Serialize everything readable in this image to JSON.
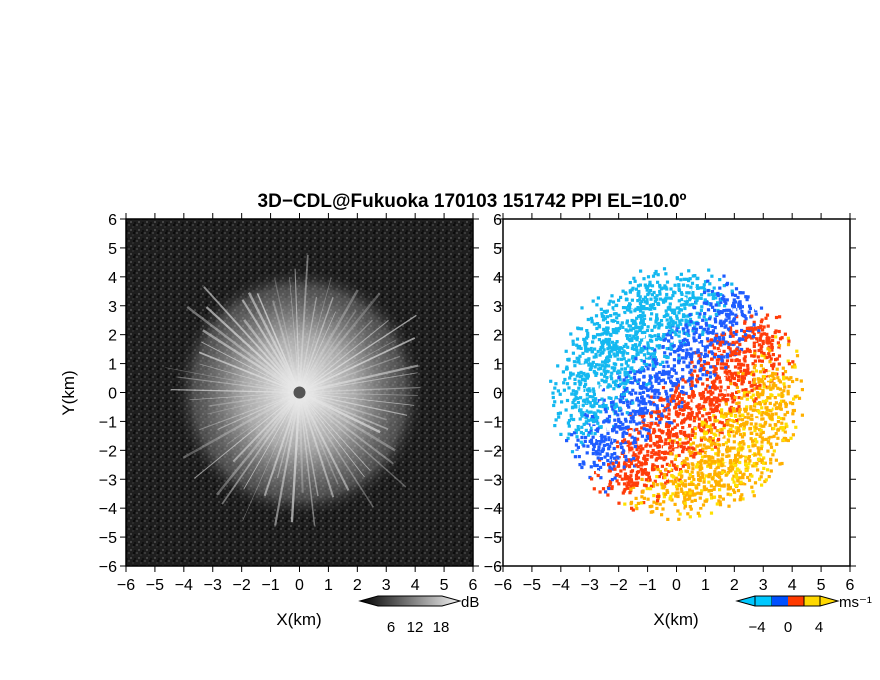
{
  "chart_data": {
    "type": "heatmap",
    "title": "3D−CDL@Fukuoka 170103 151742 PPI EL=10.0º",
    "panels": [
      {
        "name": "reflectivity",
        "xlabel": "X(km)",
        "ylabel": "Y(km)",
        "xlim": [
          -6,
          6
        ],
        "ylim": [
          -6,
          6
        ],
        "x_ticks": [
          "−6",
          "−5",
          "−4",
          "−3",
          "−2",
          "−1",
          "0",
          "1",
          "2",
          "3",
          "4",
          "5",
          "6"
        ],
        "y_ticks": [
          "6",
          "5",
          "4",
          "3",
          "2",
          "1",
          "0",
          "−1",
          "−2",
          "−3",
          "−4",
          "−5",
          "−6"
        ],
        "echo_radius_km": 4.3,
        "colorbar": {
          "unit": "dB",
          "ticks": [
            "6",
            "12",
            "18"
          ],
          "colors": [
            "#000000",
            "#555555",
            "#aaaaaa",
            "#f0f0f0"
          ]
        }
      },
      {
        "name": "doppler-velocity",
        "xlabel": "X(km)",
        "xlim": [
          -6,
          6
        ],
        "ylim": [
          -6,
          6
        ],
        "x_ticks": [
          "−6",
          "−5",
          "−4",
          "−3",
          "−2",
          "−1",
          "0",
          "1",
          "2",
          "3",
          "4",
          "5",
          "6"
        ],
        "y_ticks": [
          "6",
          "5",
          "4",
          "3",
          "2",
          "1",
          "0",
          "−1",
          "−2",
          "−3",
          "−4",
          "−5",
          "−6"
        ],
        "echo_radius_km": 4.2,
        "colorbar": {
          "unit": "ms⁻¹",
          "ticks": [
            "−4",
            "0",
            "4"
          ],
          "colors": [
            "#00c8ff",
            "#0060ff",
            "#ff3a00",
            "#ffd800"
          ]
        }
      }
    ],
    "colors": {
      "toward": "#1e5cff",
      "toward_strong": "#14b8f0",
      "away": "#ff3c0a",
      "away_weak": "#ffb000"
    }
  }
}
